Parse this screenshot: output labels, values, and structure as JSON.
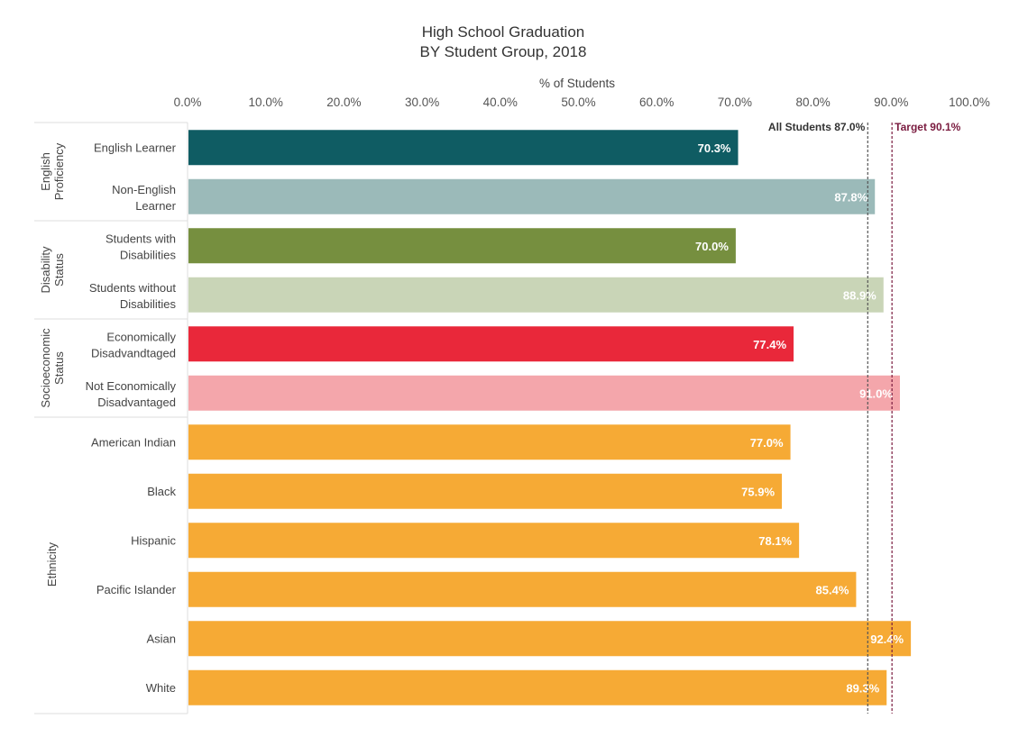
{
  "chart_data": {
    "type": "bar",
    "orientation": "horizontal",
    "title": "High School Graduation",
    "subtitle": "BY Student Group, 2018",
    "xlabel": "% of Students",
    "ylabel": "",
    "xlim": [
      0,
      100
    ],
    "x_ticks": [
      "0.0%",
      "10.0%",
      "20.0%",
      "30.0%",
      "40.0%",
      "50.0%",
      "60.0%",
      "70.0%",
      "80.0%",
      "90.0%",
      "100.0%"
    ],
    "grid": false,
    "groups": [
      {
        "name": "English Proficiency",
        "categories": [
          {
            "label": "English Learner",
            "value": 70.3,
            "value_label": "70.3%",
            "color": "#0f5c63"
          },
          {
            "label": "Non-English Learner",
            "value": 87.8,
            "value_label": "87.8%",
            "color": "#9bbab9"
          }
        ]
      },
      {
        "name": "Disability Status",
        "categories": [
          {
            "label": "Students with Disabilities",
            "value": 70.0,
            "value_label": "70.0%",
            "color": "#768f3f"
          },
          {
            "label": "Students without Disabilities",
            "value": 88.9,
            "value_label": "88.9%",
            "color": "#c9d5b7"
          }
        ]
      },
      {
        "name": "Socioeconomic Status",
        "categories": [
          {
            "label": "Economically Disadvandtaged",
            "value": 77.4,
            "value_label": "77.4%",
            "color": "#e9283a"
          },
          {
            "label": "Not Economically Disadvantaged",
            "value": 91.0,
            "value_label": "91.0%",
            "color": "#f4a6ab"
          }
        ]
      },
      {
        "name": "Ethnicity",
        "categories": [
          {
            "label": "American Indian",
            "value": 77.0,
            "value_label": "77.0%",
            "color": "#f6aa35"
          },
          {
            "label": "Black",
            "value": 75.9,
            "value_label": "75.9%",
            "color": "#f6aa35"
          },
          {
            "label": "Hispanic",
            "value": 78.1,
            "value_label": "78.1%",
            "color": "#f6aa35"
          },
          {
            "label": "Pacific Islander",
            "value": 85.4,
            "value_label": "85.4%",
            "color": "#f6aa35"
          },
          {
            "label": "Asian",
            "value": 92.4,
            "value_label": "92.4%",
            "color": "#f6aa35"
          },
          {
            "label": "White",
            "value": 89.3,
            "value_label": "89.3%",
            "color": "#f6aa35"
          }
        ]
      }
    ],
    "reference_lines": [
      {
        "label": "All Students 87.0%",
        "value": 87.0,
        "color": "#555555"
      },
      {
        "label": "Target 90.1%",
        "value": 90.1,
        "color": "#7a1b3f"
      }
    ]
  }
}
